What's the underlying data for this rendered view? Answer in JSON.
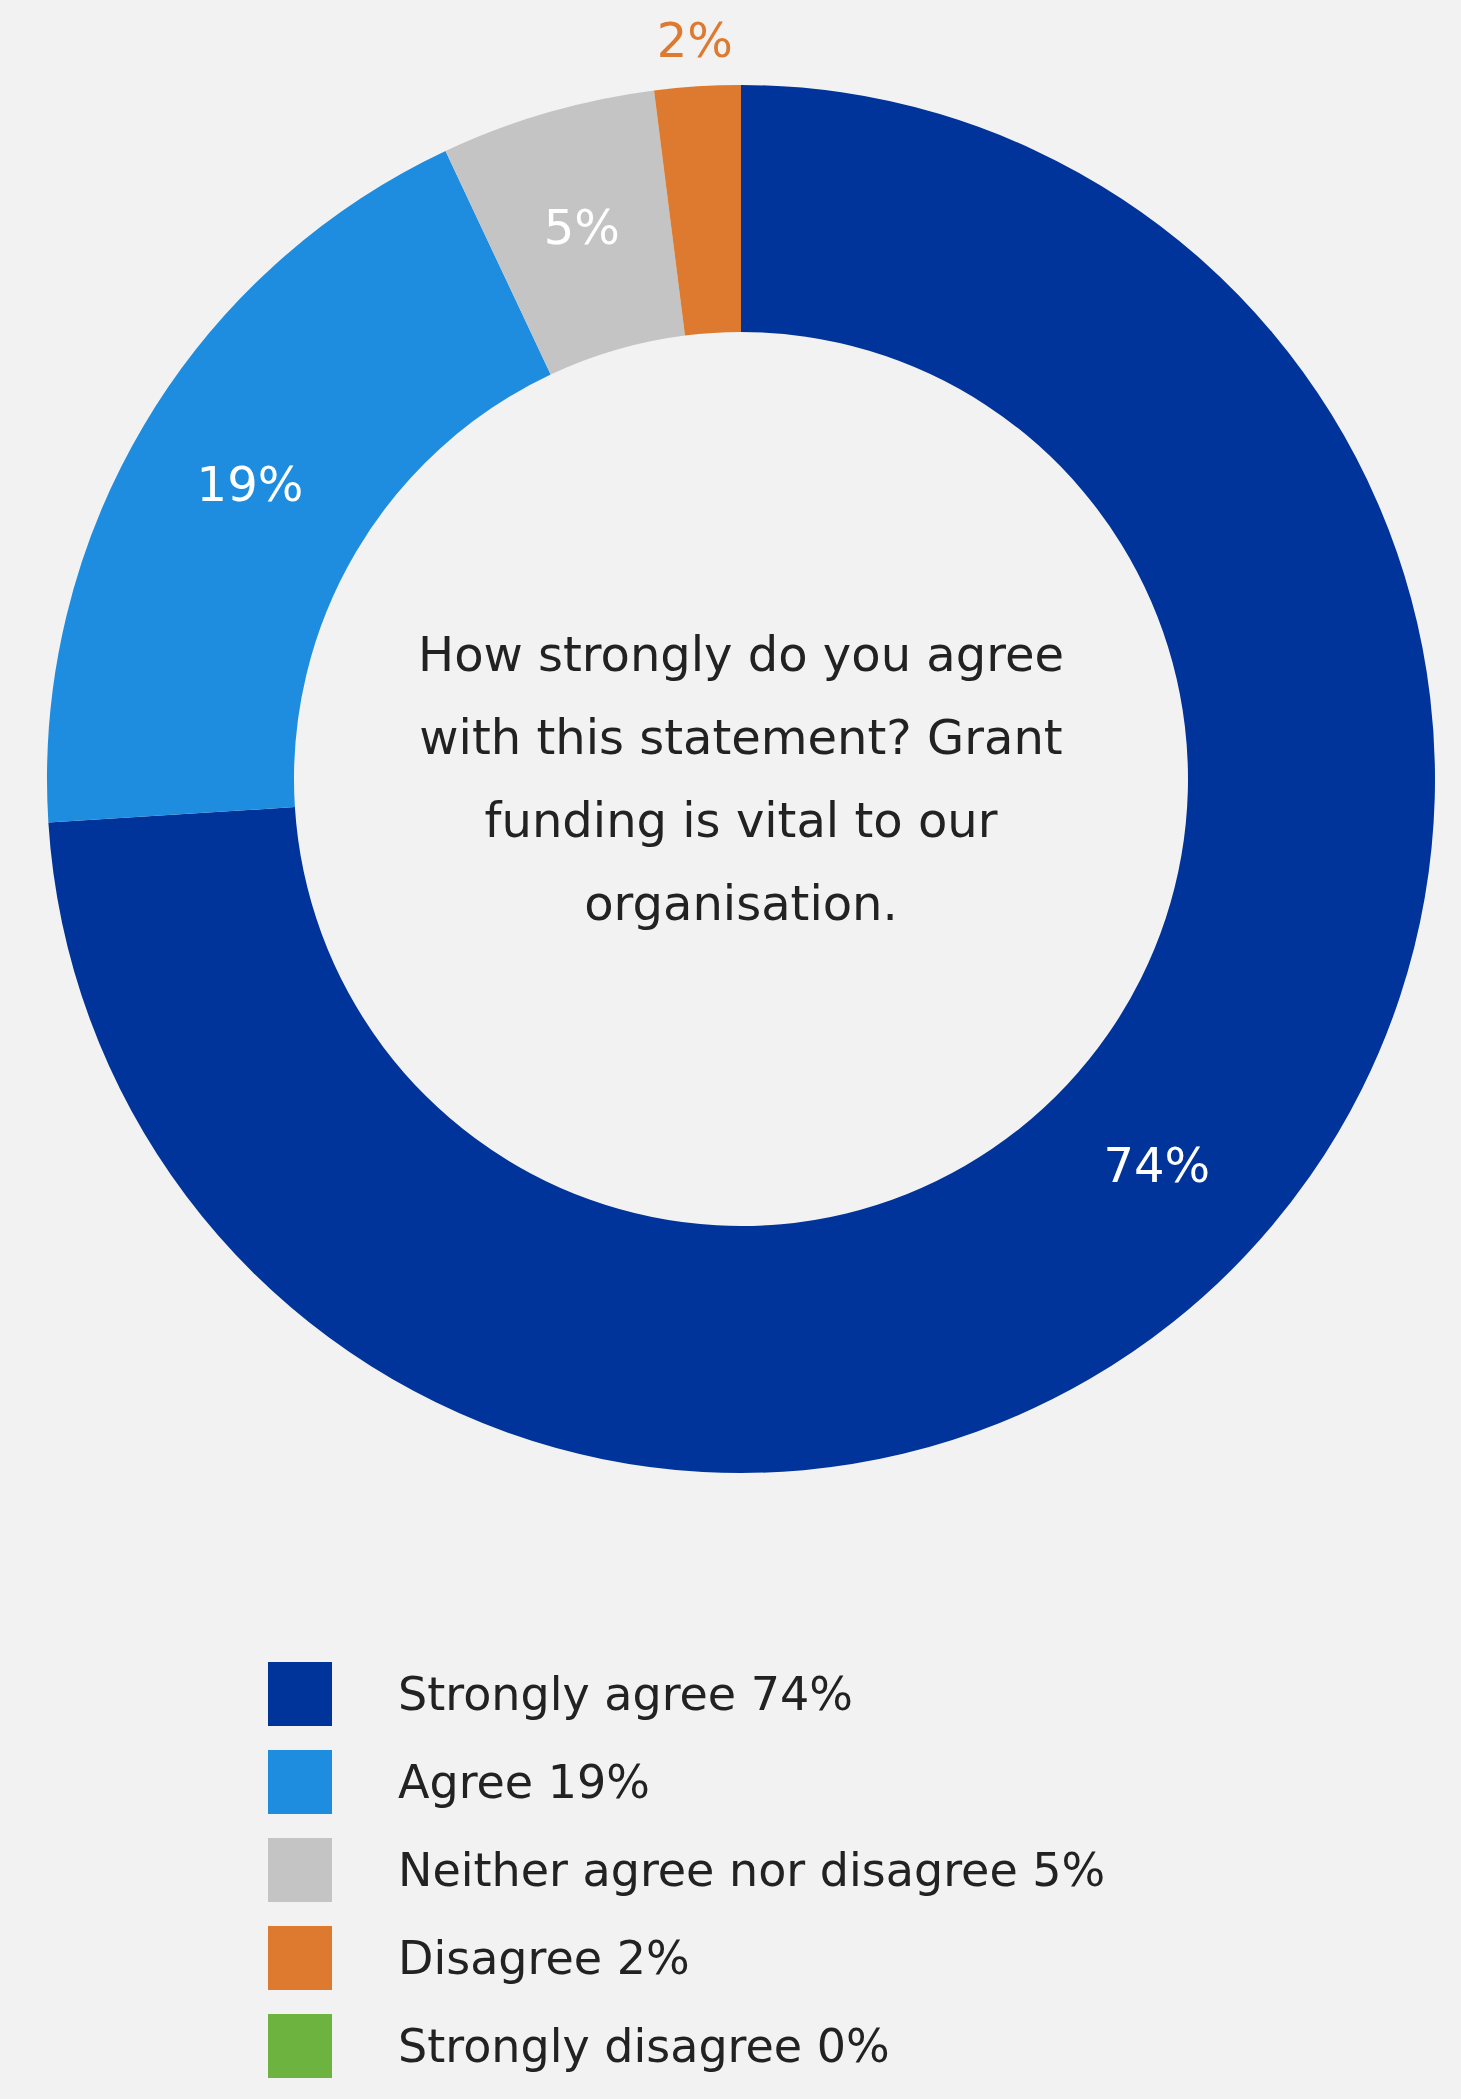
{
  "chart_data": {
    "type": "donut",
    "title": "How strongly do you agree with this statement? Grant funding is vital to our organisation.",
    "categories": [
      "Strongly agree",
      "Agree",
      "Neither agree nor disagree",
      "Disagree",
      "Strongly disagree"
    ],
    "values": [
      74,
      19,
      5,
      2,
      0
    ],
    "value_labels": [
      "74%",
      "19%",
      "5%",
      "2%",
      "0%"
    ],
    "colors": [
      "#00349a",
      "#1f8ddf",
      "#c4c4c4",
      "#dd7a30",
      "#6db33f"
    ],
    "data_labels": true,
    "legend": "bottom"
  }
}
